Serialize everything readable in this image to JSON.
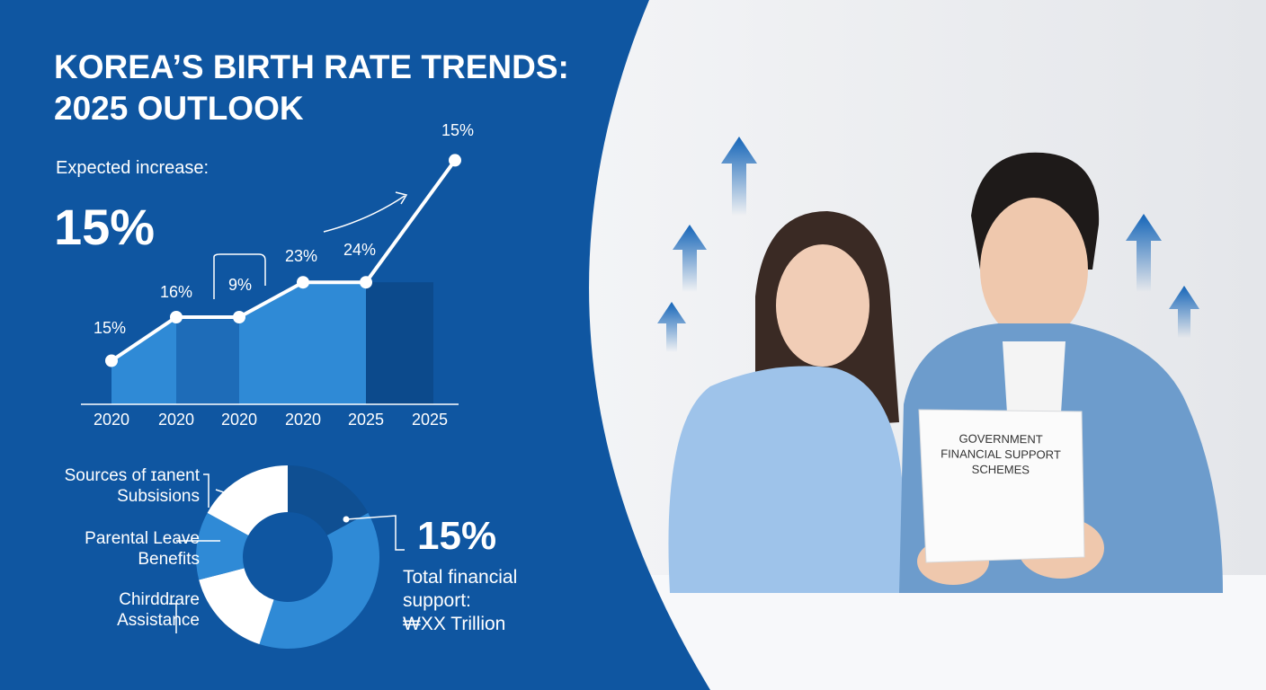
{
  "header": {
    "title": "KOREA’S BIRTH RATE TRENDS:\n2025 OUTLOOK",
    "kicker": "Expected increase:",
    "kicker_value": "15%"
  },
  "chart_data": [
    {
      "type": "line",
      "categories": [
        "2020",
        "2020",
        "2020",
        "2020",
        "2025",
        "2025"
      ],
      "values": [
        5,
        10,
        10,
        14,
        14,
        28
      ],
      "annotations": [
        "15%",
        "16%",
        "9%",
        "23%",
        "24%",
        "15%"
      ],
      "ylim": [
        0,
        30
      ],
      "color": "#ffffff",
      "area_color": "#2f8ad6"
    },
    {
      "type": "donut",
      "categories": [
        null,
        null,
        "Chirddrare\nAssistance",
        "Parental Leave\nBenefits",
        "Sources of ɪanent\nSubsisions"
      ],
      "values": [
        17,
        38,
        16,
        12,
        17
      ],
      "colors": [
        "#0f4f92",
        "#2f8ad6",
        "#ffffff",
        "#2f8ad6",
        "#ffffff"
      ],
      "annotation": "15%",
      "caption": "Total financial\nsupport:\n₩XX Trillion"
    }
  ],
  "photo": {
    "document_text": "GOVERNMENT\nFINANCIAL SUPPORT\nSCHEMES"
  }
}
